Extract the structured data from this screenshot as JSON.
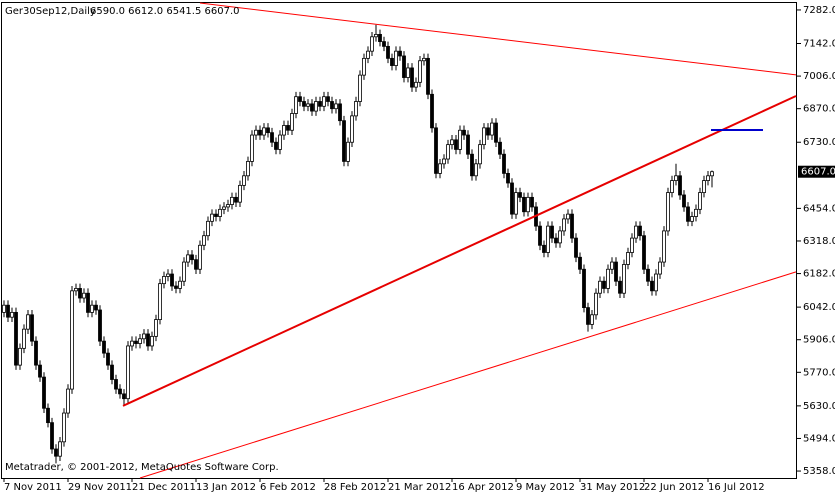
{
  "chart_data": {
    "type": "candlestick",
    "title": "Ger30Sep12,Daily",
    "info": "6590.0 6612.0 6541.5 6607.0",
    "footer": "Metatrader, © 2001-2012, MetaQuotes Software Corp.",
    "last_price": {
      "value": 6607,
      "label": "6607.0"
    },
    "xlim": [
      -1,
      198
    ],
    "ylim": [
      5329,
      7311
    ],
    "yticks": [
      {
        "value": 7282,
        "label": "7282.0"
      },
      {
        "value": 7142,
        "label": "7142.0"
      },
      {
        "value": 7006,
        "label": "7006.0"
      },
      {
        "value": 6870,
        "label": "6870.0"
      },
      {
        "value": 6730,
        "label": "6730.0"
      },
      {
        "value": 6454,
        "label": "6454.0"
      },
      {
        "value": 6318,
        "label": "6318.0"
      },
      {
        "value": 6182,
        "label": "6182.0"
      },
      {
        "value": 6042,
        "label": "6042.0"
      },
      {
        "value": 5906,
        "label": "5906.0"
      },
      {
        "value": 5770,
        "label": "5770.0"
      },
      {
        "value": 5630,
        "label": "5630.0"
      },
      {
        "value": 5494,
        "label": "5494.0"
      },
      {
        "value": 5358,
        "label": "5358.0"
      }
    ],
    "categories": [
      "7 Nov 2011",
      null,
      null,
      null,
      null,
      null,
      null,
      null,
      null,
      null,
      null,
      null,
      null,
      null,
      null,
      null,
      "29 Nov 2011",
      null,
      null,
      null,
      null,
      null,
      null,
      null,
      null,
      null,
      null,
      null,
      null,
      null,
      null,
      null,
      "21 Dec 2011",
      null,
      null,
      null,
      null,
      null,
      null,
      null,
      null,
      null,
      null,
      null,
      null,
      null,
      null,
      null,
      "13 Jan 2012",
      null,
      null,
      null,
      null,
      null,
      null,
      null,
      null,
      null,
      null,
      null,
      null,
      null,
      null,
      null,
      "6 Feb 2012",
      null,
      null,
      null,
      null,
      null,
      null,
      null,
      null,
      null,
      null,
      null,
      null,
      null,
      null,
      null,
      "28 Feb 2012",
      null,
      null,
      null,
      null,
      null,
      null,
      null,
      null,
      null,
      null,
      null,
      null,
      null,
      null,
      null,
      "21 Mar 2012",
      null,
      null,
      null,
      null,
      null,
      null,
      null,
      null,
      null,
      null,
      null,
      null,
      null,
      null,
      null,
      "16 Apr 2012",
      null,
      null,
      null,
      null,
      null,
      null,
      null,
      null,
      null,
      null,
      null,
      null,
      null,
      null,
      null,
      "9 May 2012",
      null,
      null,
      null,
      null,
      null,
      null,
      null,
      null,
      null,
      null,
      null,
      null,
      null,
      null,
      null,
      "31 May 2012",
      null,
      null,
      null,
      null,
      null,
      null,
      null,
      null,
      null,
      null,
      null,
      null,
      null,
      null,
      null,
      "22 Jun 2012",
      null,
      null,
      null,
      null,
      null,
      null,
      null,
      null,
      null,
      null,
      null,
      null,
      null,
      null,
      null,
      "16 Jul 2012",
      null
    ],
    "open": [
      6020,
      6050,
      6000,
      6020,
      5800,
      5870,
      5950,
      6010,
      5900,
      5800,
      5750,
      5620,
      5560,
      5450,
      5420,
      5480,
      5600,
      5700,
      6110,
      6120,
      6080,
      6100,
      6020,
      6050,
      6030,
      5900,
      5850,
      5800,
      5740,
      5700,
      5680,
      5660,
      5880,
      5900,
      5890,
      5910,
      5930,
      5880,
      5920,
      5990,
      6140,
      6170,
      6180,
      6130,
      6120,
      6150,
      6230,
      6260,
      6240,
      6200,
      6300,
      6340,
      6400,
      6430,
      6420,
      6450,
      6460,
      6470,
      6500,
      6480,
      6550,
      6590,
      6650,
      6760,
      6780,
      6760,
      6790,
      6770,
      6730,
      6700,
      6760,
      6800,
      6780,
      6850,
      6920,
      6900,
      6880,
      6890,
      6860,
      6900,
      6880,
      6920,
      6900,
      6870,
      6890,
      6820,
      6650,
      6730,
      6840,
      6900,
      7010,
      7080,
      7110,
      7170,
      7180,
      7150,
      7130,
      7080,
      7050,
      7110,
      7090,
      7000,
      7040,
      6960,
      6980,
      7070,
      7080,
      6930,
      6790,
      6600,
      6640,
      6660,
      6720,
      6740,
      6700,
      6780,
      6760,
      6680,
      6590,
      6640,
      6720,
      6790,
      6760,
      6810,
      6730,
      6680,
      6600,
      6560,
      6430,
      6520,
      6500,
      6440,
      6500,
      6460,
      6380,
      6300,
      6270,
      6380,
      6330,
      6310,
      6360,
      6410,
      6430,
      6330,
      6250,
      6200,
      6040,
      5970,
      6010,
      6100,
      6150,
      6120,
      6200,
      6230,
      6150,
      6100,
      6220,
      6270,
      6330,
      6380,
      6340,
      6200,
      6150,
      6110,
      6180,
      6230,
      6360,
      6520,
      6570,
      6590,
      6510,
      6460,
      6400,
      6420,
      6450,
      6520,
      6570,
      6590
    ],
    "high": [
      6070,
      6070,
      6040,
      6040,
      5890,
      5970,
      6030,
      6030,
      5920,
      5820,
      5770,
      5640,
      5580,
      5470,
      5500,
      5620,
      5720,
      6130,
      6140,
      6140,
      6120,
      6120,
      6070,
      6070,
      6050,
      5920,
      5870,
      5820,
      5760,
      5720,
      5700,
      5900,
      5920,
      5920,
      5930,
      5950,
      5950,
      5940,
      6010,
      6160,
      6190,
      6200,
      6200,
      6150,
      6170,
      6250,
      6280,
      6280,
      6260,
      6320,
      6360,
      6420,
      6450,
      6450,
      6470,
      6480,
      6490,
      6520,
      6520,
      6570,
      6610,
      6670,
      6780,
      6800,
      6800,
      6810,
      6810,
      6790,
      6750,
      6780,
      6820,
      6820,
      6870,
      6940,
      6940,
      6920,
      6910,
      6910,
      6920,
      6920,
      6940,
      6940,
      6920,
      6910,
      6910,
      6840,
      6750,
      6860,
      6920,
      7030,
      7100,
      7130,
      7190,
      7220,
      7200,
      7170,
      7150,
      7100,
      7130,
      7130,
      7110,
      7060,
      7060,
      7000,
      7090,
      7100,
      7100,
      6950,
      6810,
      6660,
      6680,
      6740,
      6760,
      6760,
      6800,
      6800,
      6780,
      6700,
      6660,
      6740,
      6810,
      6810,
      6830,
      6830,
      6750,
      6700,
      6620,
      6580,
      6540,
      6540,
      6520,
      6520,
      6520,
      6480,
      6400,
      6320,
      6400,
      6400,
      6350,
      6380,
      6430,
      6450,
      6450,
      6350,
      6270,
      6220,
      6060,
      6030,
      6120,
      6170,
      6170,
      6220,
      6250,
      6250,
      6170,
      6240,
      6290,
      6350,
      6400,
      6400,
      6360,
      6220,
      6170,
      6200,
      6250,
      6380,
      6540,
      6590,
      6640,
      6610,
      6530,
      6480,
      6440,
      6470,
      6540,
      6590,
      6610,
      6612
    ],
    "low": [
      6000,
      5980,
      5980,
      5780,
      5780,
      5850,
      5930,
      5880,
      5780,
      5730,
      5600,
      5540,
      5430,
      5390,
      5400,
      5460,
      5580,
      5680,
      6090,
      6060,
      6060,
      6000,
      6000,
      6010,
      5880,
      5830,
      5780,
      5720,
      5680,
      5660,
      5630,
      5640,
      5860,
      5870,
      5870,
      5890,
      5860,
      5860,
      5900,
      5970,
      6120,
      6150,
      6110,
      6100,
      6100,
      6130,
      6210,
      6220,
      6180,
      6180,
      6280,
      6320,
      6380,
      6400,
      6400,
      6430,
      6440,
      6450,
      6460,
      6460,
      6530,
      6570,
      6630,
      6740,
      6740,
      6740,
      6750,
      6710,
      6680,
      6680,
      6740,
      6760,
      6760,
      6830,
      6880,
      6860,
      6860,
      6840,
      6840,
      6860,
      6860,
      6880,
      6850,
      6850,
      6800,
      6630,
      6630,
      6710,
      6820,
      6880,
      6990,
      7060,
      7090,
      7150,
      7130,
      7110,
      7060,
      7030,
      7030,
      7070,
      6980,
      6980,
      6940,
      6940,
      6960,
      7050,
      6910,
      6770,
      6580,
      6580,
      6620,
      6640,
      6700,
      6680,
      6680,
      6740,
      6660,
      6570,
      6570,
      6620,
      6700,
      6740,
      6740,
      6710,
      6660,
      6580,
      6540,
      6410,
      6410,
      6480,
      6420,
      6420,
      6440,
      6360,
      6280,
      6250,
      6250,
      6310,
      6290,
      6290,
      6340,
      6390,
      6310,
      6230,
      6180,
      6020,
      5940,
      5950,
      5990,
      6080,
      6100,
      6100,
      6180,
      6130,
      6080,
      6080,
      6200,
      6250,
      6310,
      6320,
      6180,
      6130,
      6090,
      6090,
      6160,
      6210,
      6340,
      6500,
      6550,
      6490,
      6440,
      6380,
      6380,
      6400,
      6430,
      6500,
      6550,
      6541.5
    ],
    "close": [
      6050,
      6000,
      6020,
      5800,
      5870,
      5950,
      6010,
      5900,
      5800,
      5750,
      5620,
      5560,
      5450,
      5420,
      5480,
      5600,
      5700,
      6110,
      6120,
      6080,
      6100,
      6020,
      6050,
      6030,
      5900,
      5850,
      5800,
      5740,
      5700,
      5680,
      5660,
      5880,
      5900,
      5890,
      5910,
      5930,
      5880,
      5920,
      5990,
      6140,
      6170,
      6180,
      6130,
      6120,
      6150,
      6230,
      6260,
      6240,
      6200,
      6300,
      6340,
      6400,
      6430,
      6420,
      6450,
      6460,
      6470,
      6500,
      6480,
      6550,
      6590,
      6650,
      6760,
      6780,
      6760,
      6790,
      6770,
      6730,
      6700,
      6760,
      6800,
      6780,
      6850,
      6920,
      6900,
      6880,
      6890,
      6860,
      6900,
      6880,
      6920,
      6900,
      6870,
      6890,
      6820,
      6650,
      6730,
      6840,
      6900,
      7010,
      7080,
      7110,
      7170,
      7180,
      7150,
      7130,
      7080,
      7050,
      7110,
      7090,
      7000,
      7040,
      6960,
      6980,
      7070,
      7080,
      6930,
      6790,
      6600,
      6640,
      6660,
      6720,
      6740,
      6700,
      6780,
      6760,
      6680,
      6590,
      6640,
      6720,
      6790,
      6760,
      6810,
      6730,
      6680,
      6600,
      6560,
      6430,
      6520,
      6500,
      6440,
      6500,
      6460,
      6380,
      6300,
      6270,
      6380,
      6330,
      6310,
      6360,
      6410,
      6430,
      6330,
      6250,
      6200,
      6040,
      5970,
      6010,
      6100,
      6150,
      6120,
      6200,
      6230,
      6150,
      6100,
      6220,
      6270,
      6330,
      6380,
      6340,
      6200,
      6150,
      6110,
      6180,
      6230,
      6360,
      6520,
      6570,
      6590,
      6510,
      6460,
      6400,
      6420,
      6450,
      6520,
      6570,
      6590,
      6607
    ],
    "lines": [
      {
        "color": "#ff0000",
        "width": 1,
        "x": [
          49,
          198
        ],
        "y": [
          7311,
          7011
        ]
      },
      {
        "color": "#e60000",
        "width": 2,
        "x": [
          29.75,
          198
        ],
        "y": [
          5630,
          6923
        ]
      },
      {
        "color": "#ff0000",
        "width": 1,
        "x": [
          34,
          198
        ],
        "y": [
          5329,
          6189
        ]
      },
      {
        "color": "#0000cc",
        "width": 2,
        "x": [
          176.75,
          189.75
        ],
        "y": [
          6781,
          6781
        ]
      }
    ]
  }
}
